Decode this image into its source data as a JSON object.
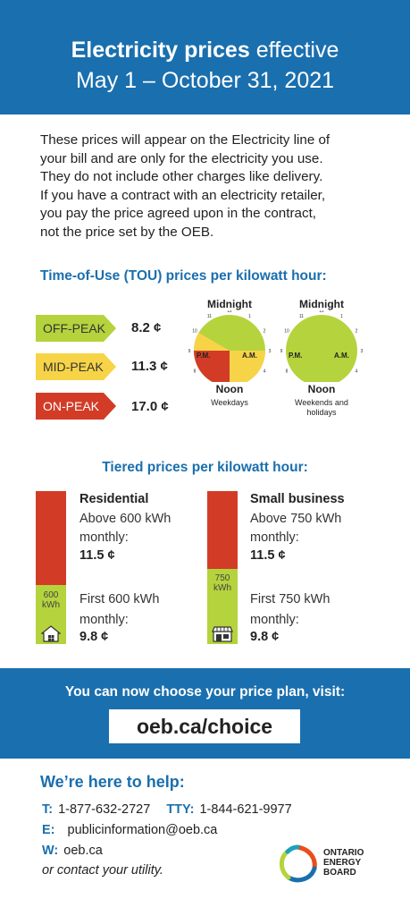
{
  "header": {
    "title_bold": "Electricity prices",
    "title_rest": " effective",
    "dates": "May 1 – October 31, 2021"
  },
  "intro": {
    "lines": [
      "These prices will appear on the Electricity line of",
      "your bill and are only for the electricity you use.",
      "They do not include other charges like delivery.",
      "If you have a contract with an electricity retailer,",
      "you pay the price agreed upon in the contract,",
      "not the price set by the OEB."
    ]
  },
  "tou": {
    "heading": "Time-of-Use (TOU) prices per kilowatt hour:",
    "tiers": [
      {
        "label": "OFF-PEAK",
        "price": "8.2 ¢",
        "color": "#b5d33d",
        "text_color": "#333333"
      },
      {
        "label": "MID-PEAK",
        "price": "11.3 ¢",
        "color": "#f7d447",
        "text_color": "#333333"
      },
      {
        "label": "ON-PEAK",
        "price": "17.0 ¢",
        "color": "#d23c27",
        "text_color": "#ffffff"
      }
    ],
    "clocks": [
      {
        "top": "Midnight",
        "bottom": "Noon",
        "pm": "P.M.",
        "am": "A.M.",
        "caption": [
          "Weekdays"
        ]
      },
      {
        "top": "Midnight",
        "bottom": "Noon",
        "pm": "P.M.",
        "am": "A.M.",
        "caption": [
          "Weekends and",
          "holidays"
        ]
      }
    ],
    "clock_numbers": [
      "12",
      "1",
      "2",
      "3",
      "4",
      "5",
      "6",
      "7",
      "8",
      "9",
      "10",
      "11"
    ]
  },
  "tiered": {
    "heading": "Tiered prices per kilowatt hour:",
    "residential": {
      "title": "Residential",
      "upper_line1": "Above 600 kWh",
      "upper_line2": "monthly:",
      "upper_price": "11.5 ¢",
      "bar_label": [
        "600",
        "kWh"
      ],
      "lower_line1": "First 600 kWh",
      "lower_line2": "monthly:",
      "lower_price": "9.8 ¢",
      "icon": "house-icon"
    },
    "business": {
      "title": "Small business",
      "upper_line1": "Above 750 kWh",
      "upper_line2": "monthly:",
      "upper_price": "11.5 ¢",
      "bar_label": [
        "750",
        "kWh"
      ],
      "lower_line1": "First 750 kWh",
      "lower_line2": "monthly:",
      "lower_price": "9.8 ¢",
      "icon": "storefront-icon"
    }
  },
  "choose": {
    "text": "You can now choose your price plan, visit:",
    "url": "oeb.ca/choice"
  },
  "help": {
    "heading": "We’re here to help:",
    "phone_key": "T:",
    "phone": "1-877-632-2727",
    "tty_key": "TTY:",
    "tty": "1-844-621-9977",
    "email_key": "E:",
    "email": "publicinformation@oeb.ca",
    "web_key": "W:",
    "web": "oeb.ca",
    "utility": "or contact your utility."
  },
  "logo": {
    "lines": [
      "ONTARIO",
      "ENERGY",
      "BOARD"
    ]
  },
  "colors": {
    "blue": "#1a6fae",
    "off_peak": "#b5d33d",
    "mid_peak": "#f7d447",
    "on_peak": "#d23c27"
  }
}
